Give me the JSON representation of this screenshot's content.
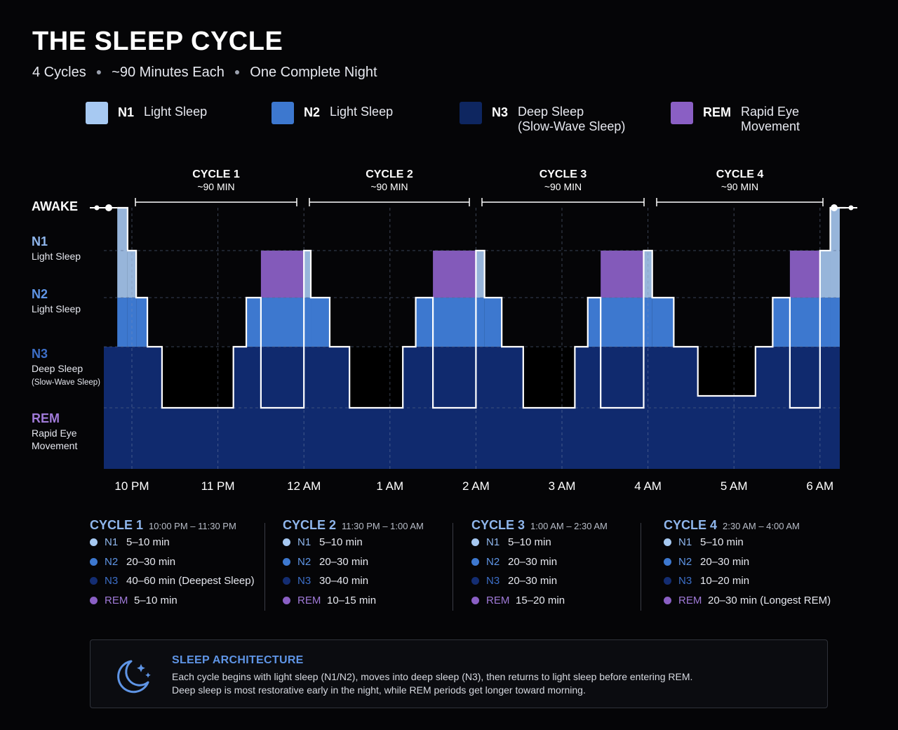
{
  "title": "THE SLEEP CYCLE",
  "subtitle": [
    "4 Cycles",
    "~90 Minutes Each",
    "One Complete Night"
  ],
  "legend": [
    {
      "code": "N1",
      "desc": "Light Sleep",
      "color": "#a7c9f2"
    },
    {
      "code": "N2",
      "desc": "Light Sleep",
      "color": "#3d78cf"
    },
    {
      "code": "N3",
      "desc": "Deep Sleep\n(Slow-Wave Sleep)",
      "color": "#0e2660"
    },
    {
      "code": "REM",
      "desc": "Rapid Eye\nMovement",
      "color": "#8a5fc4"
    }
  ],
  "chart_data": {
    "type": "area",
    "title": "THE SLEEP CYCLE",
    "x_axis": {
      "ticks": [
        "10 PM",
        "11 PM",
        "12 AM",
        "1 AM",
        "2 AM",
        "3 AM",
        "4 AM",
        "5 AM",
        "6 AM"
      ]
    },
    "y_axis": {
      "levels": [
        {
          "key": "AWAKE",
          "label": "AWAKE"
        },
        {
          "key": "N1",
          "label": "N1",
          "sublabel": "Light Sleep"
        },
        {
          "key": "N2",
          "label": "N2",
          "sublabel": "Light Sleep"
        },
        {
          "key": "N3",
          "label": "N3",
          "sublabel": "Deep Sleep\n(Slow-Wave Sleep)"
        },
        {
          "key": "REM",
          "label": "REM",
          "sublabel": "Rapid Eye\nMovement"
        }
      ]
    },
    "cycles": [
      {
        "label": "CYCLE 1",
        "duration": "~90 MIN"
      },
      {
        "label": "CYCLE 2",
        "duration": "~90 MIN"
      },
      {
        "label": "CYCLE 3",
        "duration": "~90 MIN"
      },
      {
        "label": "CYCLE 4",
        "duration": "~90 MIN"
      }
    ],
    "hypnogram": [
      {
        "hour": 9.83,
        "stage": "AWAKE"
      },
      {
        "hour": 9.95,
        "stage": "N1"
      },
      {
        "hour": 10.05,
        "stage": "N2"
      },
      {
        "hour": 10.18,
        "stage": "N3"
      },
      {
        "hour": 10.35,
        "stage": "deepest"
      },
      {
        "hour": 11.18,
        "stage": "N3"
      },
      {
        "hour": 11.33,
        "stage": "N2"
      },
      {
        "hour": 11.5,
        "stage": "REM"
      },
      {
        "hour": 12.0,
        "stage": "N1"
      },
      {
        "hour": 12.08,
        "stage": "N2"
      },
      {
        "hour": 12.3,
        "stage": "N3"
      },
      {
        "hour": 12.53,
        "stage": "deepest"
      },
      {
        "hour": 13.15,
        "stage": "N3"
      },
      {
        "hour": 13.3,
        "stage": "N2"
      },
      {
        "hour": 13.5,
        "stage": "REM"
      },
      {
        "hour": 14.0,
        "stage": "N1"
      },
      {
        "hour": 14.1,
        "stage": "N2"
      },
      {
        "hour": 14.3,
        "stage": "N3"
      },
      {
        "hour": 14.55,
        "stage": "deepest"
      },
      {
        "hour": 15.15,
        "stage": "N3"
      },
      {
        "hour": 15.3,
        "stage": "N2"
      },
      {
        "hour": 15.45,
        "stage": "REM"
      },
      {
        "hour": 15.95,
        "stage": "N1"
      },
      {
        "hour": 16.05,
        "stage": "N2"
      },
      {
        "hour": 16.3,
        "stage": "N3"
      },
      {
        "hour": 16.58,
        "stage": "deep"
      },
      {
        "hour": 17.25,
        "stage": "N3"
      },
      {
        "hour": 17.45,
        "stage": "N2"
      },
      {
        "hour": 17.65,
        "stage": "REM"
      },
      {
        "hour": 18.0,
        "stage": "N1"
      },
      {
        "hour": 18.12,
        "stage": "AWAKE"
      },
      {
        "hour": 18.3,
        "stage": "AWAKE"
      }
    ]
  },
  "cycle_details": [
    {
      "name": "CYCLE 1",
      "time": "10:00 PM – 11:30 PM",
      "stages": [
        {
          "code": "N1",
          "text": "5–10 min"
        },
        {
          "code": "N2",
          "text": "20–30 min"
        },
        {
          "code": "N3",
          "text": "40–60 min (Deepest Sleep)"
        },
        {
          "code": "REM",
          "text": "5–10 min"
        }
      ]
    },
    {
      "name": "CYCLE 2",
      "time": "11:30 PM – 1:00 AM",
      "stages": [
        {
          "code": "N1",
          "text": "5–10 min"
        },
        {
          "code": "N2",
          "text": "20–30 min"
        },
        {
          "code": "N3",
          "text": "30–40 min"
        },
        {
          "code": "REM",
          "text": "10–15 min"
        }
      ]
    },
    {
      "name": "CYCLE 3",
      "time": "1:00 AM – 2:30 AM",
      "stages": [
        {
          "code": "N1",
          "text": "5–10 min"
        },
        {
          "code": "N2",
          "text": "20–30 min"
        },
        {
          "code": "N3",
          "text": "20–30 min"
        },
        {
          "code": "REM",
          "text": "15–20 min"
        }
      ]
    },
    {
      "name": "CYCLE 4",
      "time": "2:30 AM – 4:00 AM",
      "stages": [
        {
          "code": "N1",
          "text": "5–10 min"
        },
        {
          "code": "N2",
          "text": "20–30 min"
        },
        {
          "code": "N3",
          "text": "10–20 min"
        },
        {
          "code": "REM",
          "text": "20–30 min (Longest REM)"
        }
      ]
    }
  ],
  "architecture": {
    "icon": "moon-stars-icon",
    "title": "SLEEP ARCHITECTURE",
    "lines": [
      "Each cycle begins with light sleep (N1/N2), moves into deep sleep (N3), then returns to light sleep before entering REM.",
      "Deep sleep is most restorative early in the night, while REM periods get longer toward morning."
    ]
  },
  "colors": {
    "N1": "#a7c9f2",
    "N2": "#3d78cf",
    "N3": "#0e2660",
    "REM": "#8a5fc4",
    "N1_label": "#8fb6ec",
    "N2_label": "#5f95e6",
    "N3_label": "#3d6fc8",
    "REM_label": "#a07ad8"
  }
}
